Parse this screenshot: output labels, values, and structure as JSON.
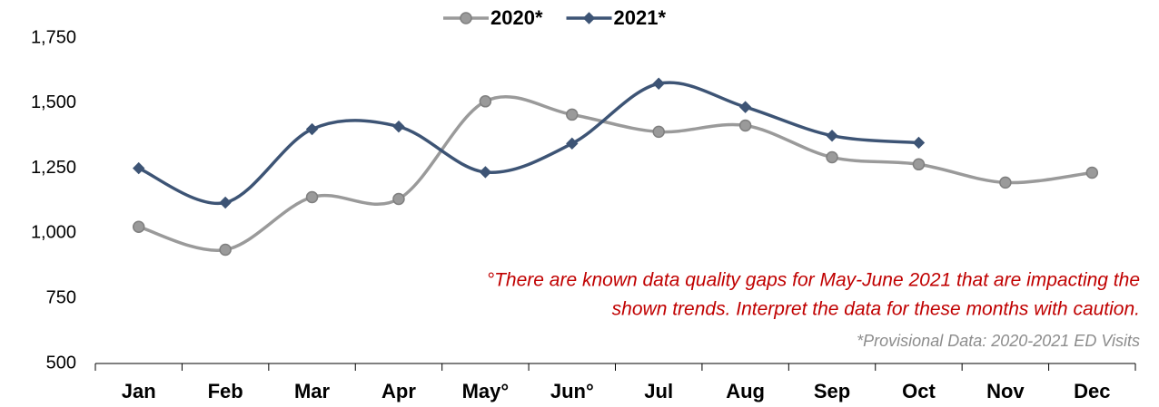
{
  "chart_data": {
    "type": "line",
    "categories": [
      "Jan",
      "Feb",
      "Mar",
      "Apr",
      "May°",
      "Jun°",
      "Jul",
      "Aug",
      "Sep",
      "Oct",
      "Nov",
      "Dec"
    ],
    "series": [
      {
        "name": "2020*",
        "color": "#9a9a9a",
        "marker": "circle",
        "values": [
          1025,
          937,
          1139,
          1132,
          1507,
          1456,
          1390,
          1414,
          1292,
          1265,
          1195,
          1233
        ]
      },
      {
        "name": "2021*",
        "color": "#3d5475",
        "marker": "diamond",
        "values": [
          1250,
          1118,
          1400,
          1410,
          1235,
          1345,
          1575,
          1485,
          1375,
          1348,
          null,
          null
        ]
      }
    ],
    "ylim": [
      500,
      1750
    ],
    "yticks": [
      {
        "value": 500,
        "label": "500"
      },
      {
        "value": 750,
        "label": "750"
      },
      {
        "value": 1000,
        "label": "1,000"
      },
      {
        "value": 1250,
        "label": "1,250"
      },
      {
        "value": 1500,
        "label": "1,500"
      },
      {
        "value": 1750,
        "label": "1,750"
      }
    ],
    "grid": false,
    "smooth": true,
    "legend": "top",
    "annotations": [
      "°There are known data quality gaps for May-June 2021 that are impacting the",
      "shown trends. Interpret the data for these months with caution."
    ],
    "note": "*Provisional Data: 2020-2021 ED Visits"
  }
}
